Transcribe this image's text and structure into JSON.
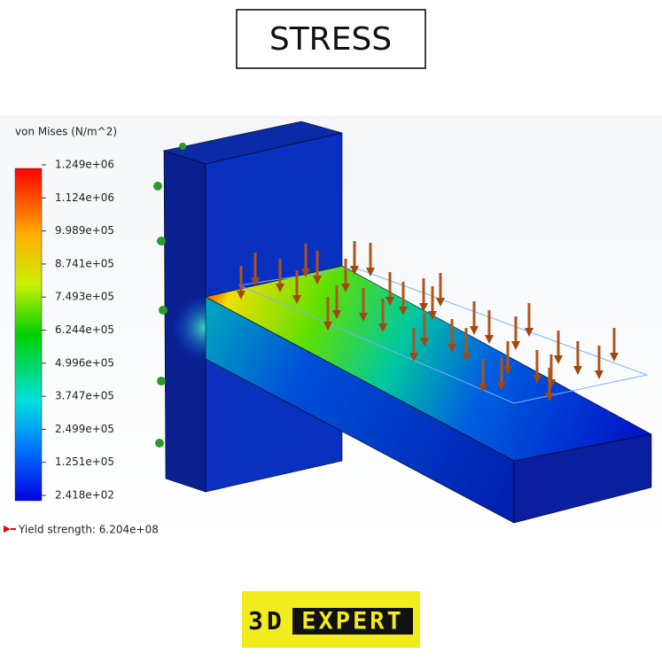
{
  "header": {
    "title": "STRESS"
  },
  "legend": {
    "title": "von Mises (N/m^2)",
    "labels": [
      "1.249e+06",
      "1.124e+06",
      "9.989e+05",
      "8.741e+05",
      "7.493e+05",
      "6.244e+05",
      "4.996e+05",
      "3.747e+05",
      "2.499e+05",
      "1.251e+05",
      "2.418e+02"
    ]
  },
  "yield_strength": "Yield strength: 6.204e+08",
  "logo": {
    "left": "3D",
    "right": "EXPERT"
  }
}
